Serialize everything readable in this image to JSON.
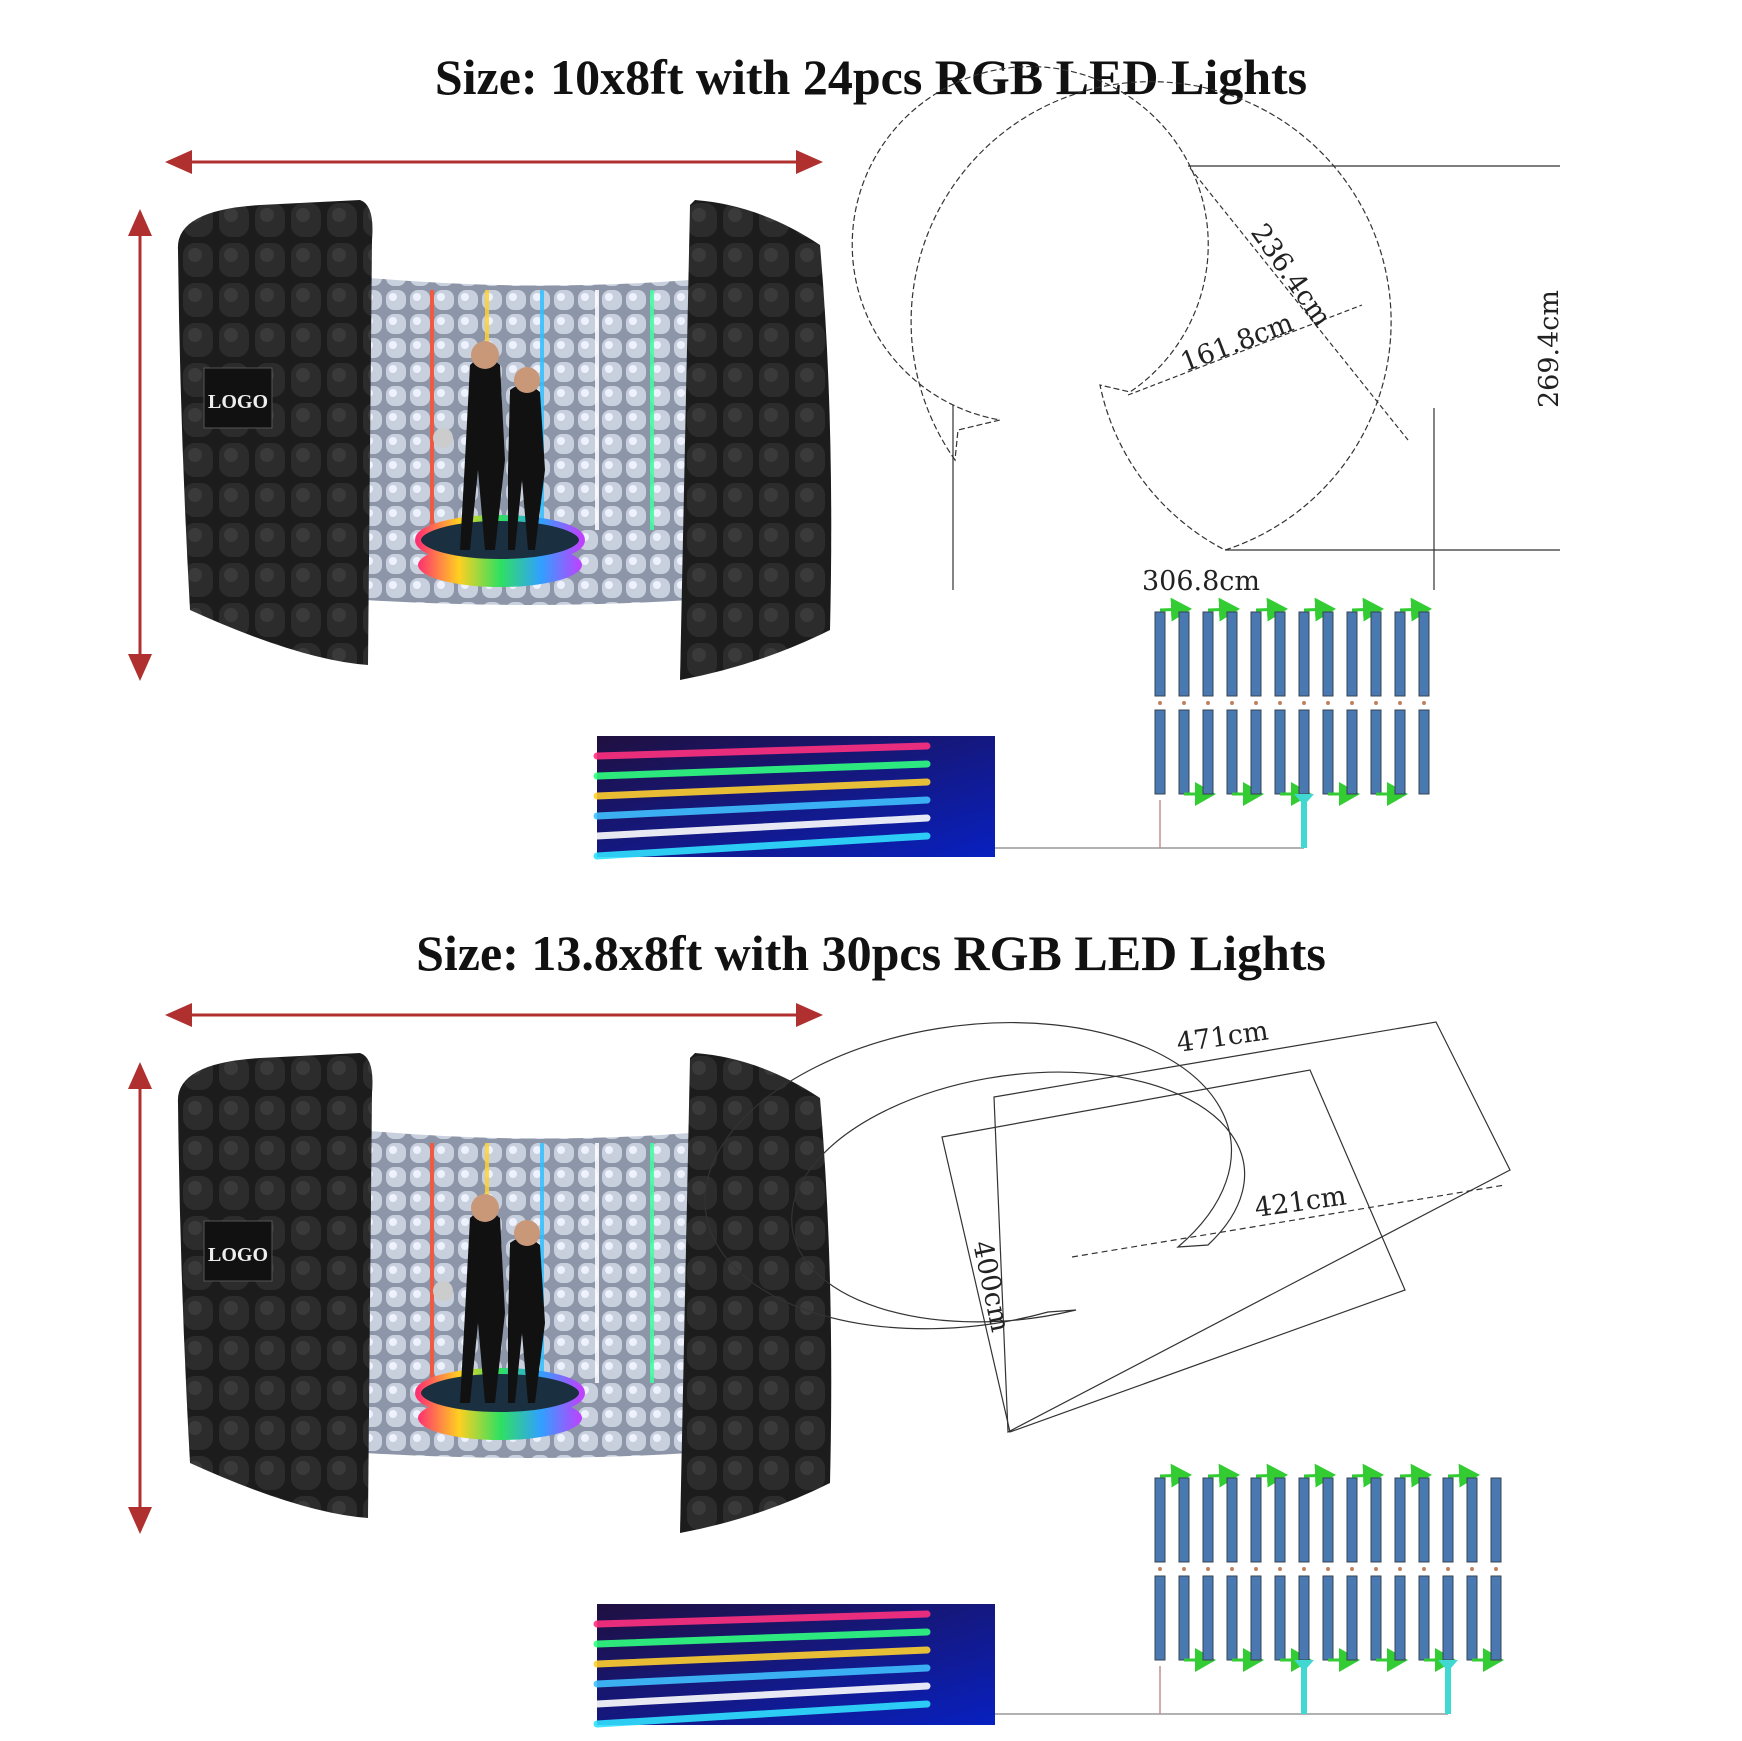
{
  "sections": [
    {
      "title": "Size: 10x8ft with 24pcs RGB LED Lights",
      "logo_text": "LOGO",
      "dimensions": {
        "diagonal": "236.4cm",
        "radius": "161.8cm",
        "depth": "269.4cm",
        "width": "306.8cm"
      },
      "led_bar_columns": 12
    },
    {
      "title": "Size: 13.8x8ft with 30pcs RGB LED Lights",
      "logo_text": "LOGO",
      "dimensions": {
        "length": "471cm",
        "inner": "421cm",
        "depth": "400cm"
      },
      "led_bar_columns": 15
    }
  ],
  "colors": {
    "dimension_arrow": "#b03030",
    "led_bar": "#4a78b0",
    "flow_arrow": "#33cc33",
    "power_connector": "#40d8d0",
    "booth_panel": "#1a1a1a"
  }
}
